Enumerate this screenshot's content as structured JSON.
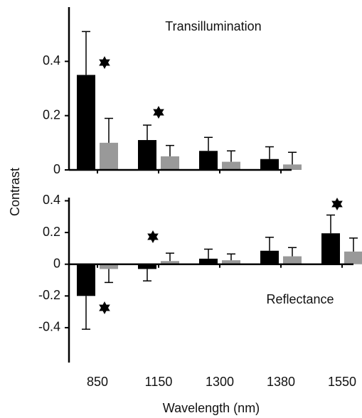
{
  "chart_data": [
    {
      "type": "bar",
      "title": "Transillumination",
      "ylabel": "Contrast",
      "categories": [
        null,
        null,
        null,
        null
      ],
      "series": [
        {
          "color": "#000000",
          "values": [
            0.35,
            0.11,
            0.07,
            0.04
          ],
          "errors": [
            0.16,
            0.055,
            0.05,
            0.045
          ]
        },
        {
          "color": "#999999",
          "values": [
            0.1,
            0.05,
            0.03,
            0.02
          ],
          "errors": [
            0.09,
            0.04,
            0.04,
            0.045
          ]
        }
      ],
      "ylim": [
        0,
        0.6
      ],
      "yticks": [
        0,
        0.2,
        0.4
      ]
    },
    {
      "type": "bar",
      "title": "Reflectance",
      "xlabel": "Wavelength (nm)",
      "categories": [
        "850",
        "1150",
        "1300",
        "1380",
        "1550"
      ],
      "series": [
        {
          "color": "#000000",
          "values": [
            -0.2,
            -0.03,
            0.035,
            0.085,
            0.195
          ],
          "errors": [
            0.21,
            0.075,
            0.06,
            0.085,
            0.115
          ]
        },
        {
          "color": "#999999",
          "values": [
            -0.03,
            0.02,
            0.025,
            0.05,
            0.08
          ],
          "errors": [
            0.085,
            0.05,
            0.04,
            0.055,
            0.085
          ]
        }
      ],
      "ylim": [
        -0.62,
        0.42
      ],
      "yticks": [
        -0.4,
        -0.2,
        0,
        0.2,
        0.4
      ]
    }
  ]
}
